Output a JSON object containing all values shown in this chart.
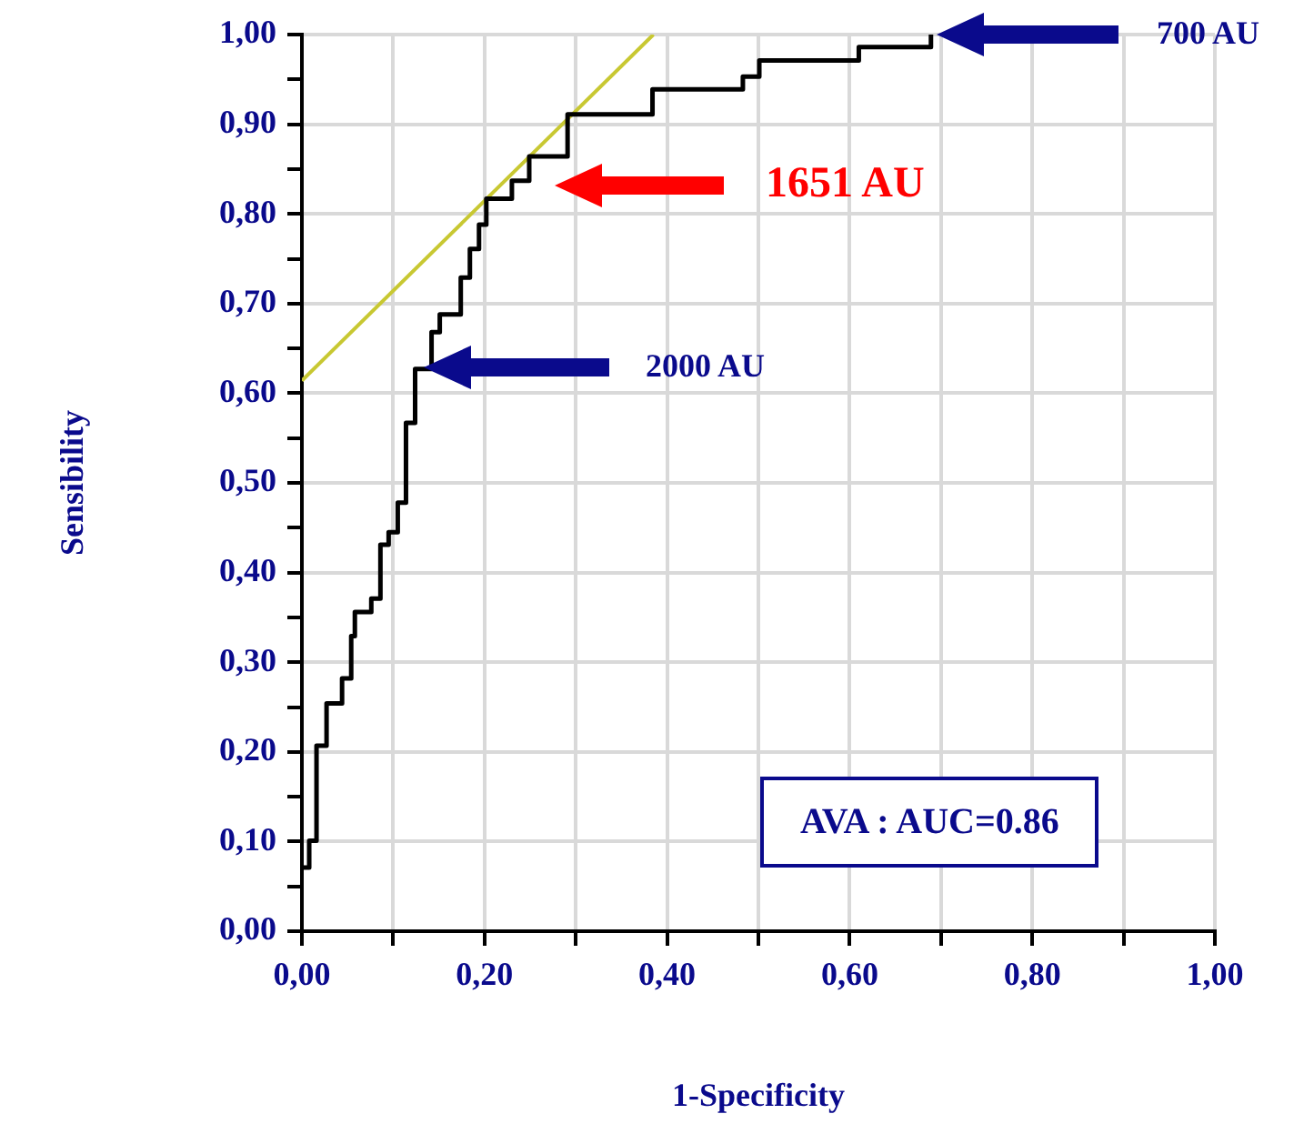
{
  "chart_data": {
    "type": "step",
    "xlabel": "1-Specificity",
    "ylabel": "Sensibility",
    "series": [
      {
        "color": "#000000",
        "x": [
          0,
          0.008,
          0.016,
          0.027,
          0.044,
          0.054,
          0.058,
          0.076,
          0.086,
          0.095,
          0.105,
          0.114,
          0.124,
          0.142,
          0.151,
          0.174,
          0.184,
          0.194,
          0.202,
          0.23,
          0.249,
          0.291,
          0.384,
          0.483,
          0.501,
          0.61,
          0.689
        ],
        "values": [
          0.071,
          0.101,
          0.207,
          0.254,
          0.282,
          0.329,
          0.356,
          0.371,
          0.431,
          0.445,
          0.478,
          0.567,
          0.627,
          0.668,
          0.688,
          0.729,
          0.761,
          0.788,
          0.817,
          0.837,
          0.864,
          0.911,
          0.939,
          0.953,
          0.971,
          0.986,
          1.0
        ]
      },
      {
        "type": "line",
        "color": "#c8c832",
        "x": [
          0,
          0.385
        ],
        "values": [
          0.614,
          1.0
        ]
      }
    ],
    "xlim": [
      0,
      1
    ],
    "ylim": [
      0,
      1
    ],
    "xticks": [
      {
        "value": 0,
        "label": "0,00"
      },
      {
        "value": 0.1,
        "label": null
      },
      {
        "value": 0.2,
        "label": "0,20"
      },
      {
        "value": 0.3,
        "label": null
      },
      {
        "value": 0.4,
        "label": "0,40"
      },
      {
        "value": 0.5,
        "label": null
      },
      {
        "value": 0.6,
        "label": "0,60"
      },
      {
        "value": 0.7,
        "label": null
      },
      {
        "value": 0.8,
        "label": "0,80"
      },
      {
        "value": 0.9,
        "label": null
      },
      {
        "value": 1,
        "label": "1,00"
      }
    ],
    "yticks": [
      {
        "value": 0,
        "label": "0,00"
      },
      {
        "value": 0.05,
        "label": null
      },
      {
        "value": 0.1,
        "label": "0,10"
      },
      {
        "value": 0.15,
        "label": null
      },
      {
        "value": 0.2,
        "label": "0,20"
      },
      {
        "value": 0.25,
        "label": null
      },
      {
        "value": 0.3,
        "label": "0,30"
      },
      {
        "value": 0.35,
        "label": null
      },
      {
        "value": 0.4,
        "label": "0,40"
      },
      {
        "value": 0.45,
        "label": null
      },
      {
        "value": 0.5,
        "label": "0,50"
      },
      {
        "value": 0.55,
        "label": null
      },
      {
        "value": 0.6,
        "label": "0,60"
      },
      {
        "value": 0.65,
        "label": null
      },
      {
        "value": 0.7,
        "label": "0,70"
      },
      {
        "value": 0.75,
        "label": null
      },
      {
        "value": 0.8,
        "label": "0,80"
      },
      {
        "value": 0.85,
        "label": null
      },
      {
        "value": 0.9,
        "label": "0,90"
      },
      {
        "value": 0.95,
        "label": null
      },
      {
        "value": 1,
        "label": "1,00"
      }
    ],
    "grid": true,
    "legend": false,
    "marker": "none",
    "line_style": "solid",
    "annotations": [
      "700 AU",
      "1651 AU",
      "2000 AU",
      "AVA : AUC=0.86"
    ]
  }
}
